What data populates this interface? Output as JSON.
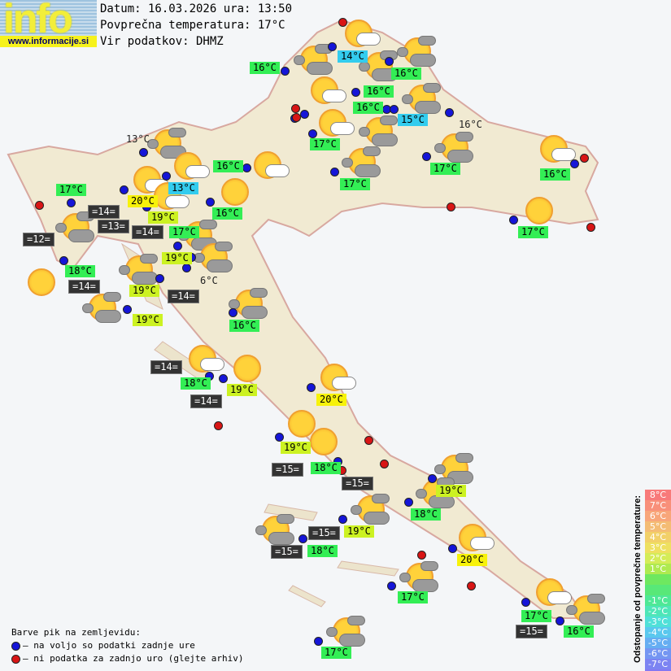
{
  "logo": {
    "word": "info",
    "url": "www.informacije.si"
  },
  "header": {
    "date_line": "Datum: 16.03.2026 ura: 13:50",
    "avg_line": "Povprečna temperatura: 17°C",
    "source_line": "Vir podatkov: DHMZ"
  },
  "temperature_labels": [
    {
      "text": "14°C",
      "style": "c"
    },
    {
      "text": "16°C",
      "style": "g"
    },
    {
      "text": "16°C",
      "style": "g"
    },
    {
      "text": "16°C",
      "style": "g"
    },
    {
      "text": "16°C",
      "style": "g"
    },
    {
      "text": "15°C",
      "style": "c"
    },
    {
      "text": "16°C",
      "style": "p"
    },
    {
      "text": "17°C",
      "style": "g"
    },
    {
      "text": "13°C",
      "style": "p"
    },
    {
      "text": "16°C",
      "style": "g"
    },
    {
      "text": "17°C",
      "style": "g"
    },
    {
      "text": "13°C",
      "style": "c"
    },
    {
      "text": "17°C",
      "style": "g"
    },
    {
      "text": "17°C",
      "style": "g"
    },
    {
      "text": "16°C",
      "style": "g"
    },
    {
      "text": "20°C",
      "style": "y"
    },
    {
      "text": "19°C",
      "style": "yg"
    },
    {
      "text": "16°C",
      "style": "g"
    },
    {
      "text": "17°C",
      "style": "g"
    },
    {
      "text": "17°C",
      "style": "g"
    },
    {
      "text": "19°C",
      "style": "yg"
    },
    {
      "text": "18°C",
      "style": "g"
    },
    {
      "text": "19°C",
      "style": "yg"
    },
    {
      "text": "6°C",
      "style": "p"
    },
    {
      "text": "19°C",
      "style": "yg"
    },
    {
      "text": "16°C",
      "style": "g"
    },
    {
      "text": "18°C",
      "style": "g"
    },
    {
      "text": "19°C",
      "style": "yg"
    },
    {
      "text": "20°C",
      "style": "y"
    },
    {
      "text": "19°C",
      "style": "yg"
    },
    {
      "text": "18°C",
      "style": "g"
    },
    {
      "text": "19°C",
      "style": "yg"
    },
    {
      "text": "18°C",
      "style": "g"
    },
    {
      "text": "19°C",
      "style": "yg"
    },
    {
      "text": "20°C",
      "style": "y"
    },
    {
      "text": "18°C",
      "style": "g"
    },
    {
      "text": "17°C",
      "style": "g"
    },
    {
      "text": "17°C",
      "style": "g"
    },
    {
      "text": "16°C",
      "style": "g"
    },
    {
      "text": "17°C",
      "style": "g"
    }
  ],
  "sea_labels": [
    "=14=",
    "=13=",
    "=14=",
    "=12=",
    "=14=",
    "=14=",
    "=14=",
    "=14=",
    "=15=",
    "=15=",
    "=15=",
    "=15=",
    "=15="
  ],
  "weather_icons": [
    "partly-cloudy",
    "cloudy-sun",
    "cloudy-sun",
    "cloudy-sun",
    "partly-cloudy",
    "cloudy-sun",
    "partly-cloudy",
    "cloudy-sun",
    "cloudy-sun",
    "partly-cloudy",
    "partly-cloudy",
    "partly-cloudy",
    "cloudy-sun",
    "cloudy-sun",
    "cloudy-sun",
    "cloudy-sun",
    "cloudy-sun",
    "cloudy-sun",
    "partly-cloudy",
    "sunny",
    "partly-cloudy",
    "sunny",
    "sunny",
    "cloudy-sun",
    "cloudy-sun",
    "cloudy-sun",
    "partly-cloudy",
    "cloudy-sun",
    "cloudy-sun",
    "partly-cloudy",
    "cloudy-sun",
    "cloudy-sun",
    "sunny",
    "partly-cloudy",
    "sunny",
    "partly-cloudy",
    "cloudy-sun",
    "cloudy-sun",
    "sunny"
  ],
  "stations": {
    "blue": 42,
    "red": 14
  },
  "legend": {
    "title": "Barve pik na zemljevidu:",
    "blue": "– na voljo so podatki zadnje ure",
    "red": "– ni podatka za zadnjo uro (glejte arhiv)"
  },
  "scale": {
    "title": "Odstopanje od povprečne temperature:",
    "steps": [
      {
        "label": "8°C",
        "color": "#f87a7a"
      },
      {
        "label": "7°C",
        "color": "#f8907a"
      },
      {
        "label": "6°C",
        "color": "#f8a67a"
      },
      {
        "label": "5°C",
        "color": "#f4bc74"
      },
      {
        "label": "4°C",
        "color": "#f2d068"
      },
      {
        "label": "3°C",
        "color": "#eee060"
      },
      {
        "label": "2°C",
        "color": "#d4ec58"
      },
      {
        "label": "1°C",
        "color": "#aeea50"
      },
      {
        "label": "",
        "color": "#6ee860"
      },
      {
        "label": "",
        "color": "#58e878"
      },
      {
        "label": "-1°C",
        "color": "#4ee896"
      },
      {
        "label": "-2°C",
        "color": "#4ee6b8"
      },
      {
        "label": "-3°C",
        "color": "#50e0d8"
      },
      {
        "label": "-4°C",
        "color": "#5ac8ee"
      },
      {
        "label": "-5°C",
        "color": "#66aef2"
      },
      {
        "label": "-6°C",
        "color": "#7496f2"
      },
      {
        "label": "-7°C",
        "color": "#7c84f2"
      },
      {
        "label": "-8°C",
        "color": "#8478f2"
      }
    ]
  },
  "colors": {
    "blue_dot": "#1515d8",
    "red_dot": "#d81515",
    "land": "#f3ecd8",
    "sea": "#f4f6f8"
  }
}
